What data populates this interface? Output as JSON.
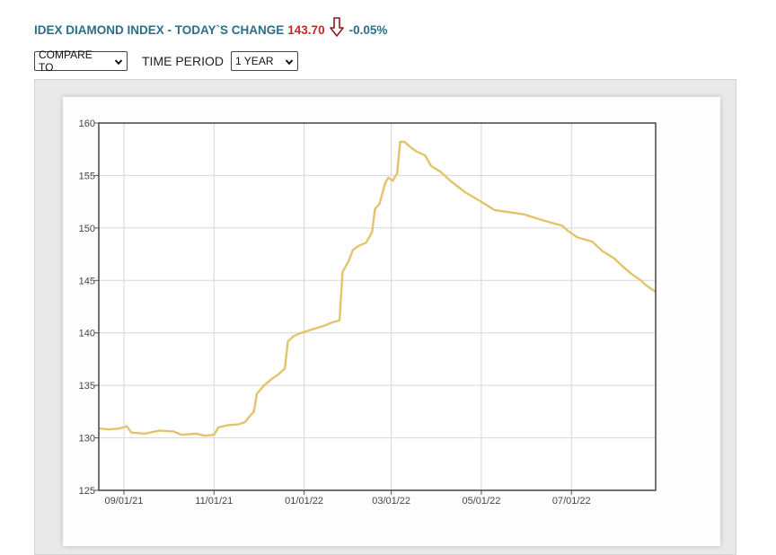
{
  "header": {
    "title": "IDEX DIAMOND INDEX - TODAY`S CHANGE",
    "value": "143.70",
    "change": "-0.05%",
    "direction_icon": "arrow-down-icon"
  },
  "controls": {
    "compare_label": "COMPARE TO",
    "period_label": "TIME PERIOD",
    "period_value": "1 YEAR"
  },
  "colors": {
    "title": "#2a6f86",
    "value": "#c62828",
    "arrow": "#8b1a1a",
    "line": "#e2c46c"
  },
  "chart_data": {
    "type": "line",
    "title": "",
    "xlabel": "",
    "ylabel": "",
    "ylim": [
      125,
      160
    ],
    "yticks": [
      "125",
      "130",
      "135",
      "140",
      "145",
      "150",
      "155",
      "160"
    ],
    "xlim": [
      "2021-08-15",
      "2022-08-27"
    ],
    "xticks": [
      {
        "date": "2021-09-01",
        "label": "09/01/21"
      },
      {
        "date": "2021-11-01",
        "label": "11/01/21"
      },
      {
        "date": "2022-01-01",
        "label": "01/01/22"
      },
      {
        "date": "2022-03-01",
        "label": "03/01/22"
      },
      {
        "date": "2022-05-01",
        "label": "05/01/22"
      },
      {
        "date": "2022-07-01",
        "label": "07/01/22"
      }
    ],
    "grid": true,
    "series": [
      {
        "points": [
          [
            "2021-08-15",
            130.9
          ],
          [
            "2021-08-22",
            130.8
          ],
          [
            "2021-08-29",
            130.9
          ],
          [
            "2021-09-03",
            131.1
          ],
          [
            "2021-09-06",
            130.5
          ],
          [
            "2021-09-15",
            130.4
          ],
          [
            "2021-09-25",
            130.7
          ],
          [
            "2021-10-05",
            130.6
          ],
          [
            "2021-10-10",
            130.3
          ],
          [
            "2021-10-20",
            130.4
          ],
          [
            "2021-10-26",
            130.2
          ],
          [
            "2021-11-01",
            130.3
          ],
          [
            "2021-11-04",
            131.0
          ],
          [
            "2021-11-10",
            131.2
          ],
          [
            "2021-11-18",
            131.3
          ],
          [
            "2021-11-22",
            131.5
          ],
          [
            "2021-11-26",
            132.2
          ],
          [
            "2021-11-28",
            132.5
          ],
          [
            "2021-11-30",
            134.2
          ],
          [
            "2021-12-05",
            135.0
          ],
          [
            "2021-12-10",
            135.6
          ],
          [
            "2021-12-15",
            136.1
          ],
          [
            "2021-12-19",
            136.6
          ],
          [
            "2021-12-21",
            139.2
          ],
          [
            "2021-12-25",
            139.7
          ],
          [
            "2021-12-30",
            140.0
          ],
          [
            "2022-01-08",
            140.4
          ],
          [
            "2022-01-15",
            140.7
          ],
          [
            "2022-01-20",
            141.0
          ],
          [
            "2022-01-25",
            141.2
          ],
          [
            "2022-01-27",
            145.8
          ],
          [
            "2022-01-31",
            146.8
          ],
          [
            "2022-02-03",
            147.9
          ],
          [
            "2022-02-07",
            148.3
          ],
          [
            "2022-02-12",
            148.6
          ],
          [
            "2022-02-16",
            149.6
          ],
          [
            "2022-02-18",
            151.8
          ],
          [
            "2022-02-21",
            152.3
          ],
          [
            "2022-02-25",
            154.3
          ],
          [
            "2022-02-27",
            154.8
          ],
          [
            "2022-03-02",
            154.5
          ],
          [
            "2022-03-05",
            155.2
          ],
          [
            "2022-03-07",
            158.2
          ],
          [
            "2022-03-10",
            158.2
          ],
          [
            "2022-03-14",
            157.7
          ],
          [
            "2022-03-18",
            157.3
          ],
          [
            "2022-03-24",
            156.9
          ],
          [
            "2022-03-28",
            155.9
          ],
          [
            "2022-04-03",
            155.4
          ],
          [
            "2022-04-10",
            154.5
          ],
          [
            "2022-04-20",
            153.4
          ],
          [
            "2022-05-01",
            152.5
          ],
          [
            "2022-05-10",
            151.7
          ],
          [
            "2022-05-20",
            151.5
          ],
          [
            "2022-05-30",
            151.3
          ],
          [
            "2022-06-10",
            150.8
          ],
          [
            "2022-06-20",
            150.4
          ],
          [
            "2022-06-25",
            150.2
          ],
          [
            "2022-06-28",
            149.8
          ],
          [
            "2022-07-05",
            149.1
          ],
          [
            "2022-07-15",
            148.7
          ],
          [
            "2022-07-22",
            147.8
          ],
          [
            "2022-07-30",
            147.1
          ],
          [
            "2022-08-05",
            146.3
          ],
          [
            "2022-08-10",
            145.7
          ],
          [
            "2022-08-17",
            145.0
          ],
          [
            "2022-08-20",
            144.6
          ],
          [
            "2022-08-27",
            143.9
          ]
        ]
      }
    ]
  }
}
